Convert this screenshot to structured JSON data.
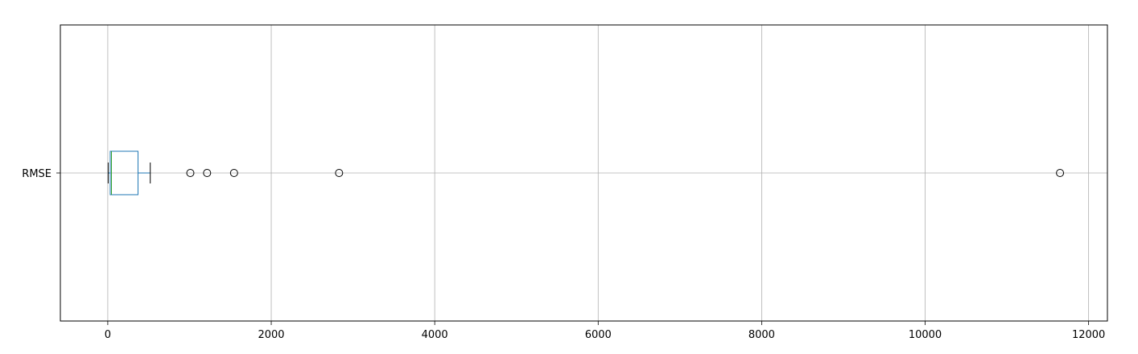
{
  "chart_data": {
    "type": "boxplot",
    "orientation": "horizontal",
    "title": "",
    "xlabel": "",
    "ylabel": "",
    "xlim": [
      -580,
      12230
    ],
    "grid": true,
    "categories": [
      "RMSE"
    ],
    "series": [
      {
        "name": "RMSE",
        "whisker_low": 5,
        "q1": 30,
        "median": 45,
        "q3": 370,
        "whisker_high": 520,
        "outliers": [
          1010,
          1215,
          1545,
          2830,
          11650
        ]
      }
    ],
    "x_ticks": [
      0,
      2000,
      4000,
      6000,
      8000,
      10000,
      12000
    ],
    "x_tick_labels": [
      "0",
      "2000",
      "4000",
      "6000",
      "8000",
      "10000",
      "12000"
    ],
    "colors": {
      "box": "#1f77b4",
      "median": "#2ca02c",
      "whisker": "#000000",
      "grid": "#b0b0b0",
      "outlier_edge": "#000000"
    }
  }
}
